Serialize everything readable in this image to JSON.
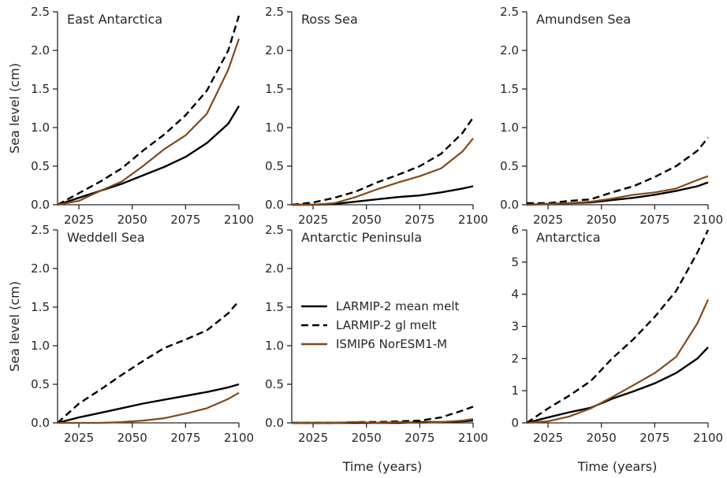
{
  "figure": {
    "ylabel": "Sea level (cm)",
    "xlabel": "Time (years)"
  },
  "legend": {
    "placement": "center of Antarctic Peninsula panel",
    "entries": [
      {
        "label": "LARMIP-2 mean melt",
        "color": "#000000",
        "style": "solid"
      },
      {
        "label": "LARMIP-2 gl melt",
        "color": "#000000",
        "style": "dashed"
      },
      {
        "label": "ISMIP6 NorESM1-M",
        "color": "#7f4a1c",
        "style": "solid"
      }
    ]
  },
  "chart_data": [
    {
      "type": "line",
      "title": "East Antarctica",
      "xlim": [
        2015,
        2100
      ],
      "ylim": [
        0,
        2.5
      ],
      "xticks": [
        2025,
        2050,
        2075,
        2100
      ],
      "yticks": [
        0.0,
        0.5,
        1.0,
        1.5,
        2.0,
        2.5
      ],
      "ylabel": "Sea level (cm)",
      "xlabel": "",
      "grid": false,
      "x": [
        2015,
        2025,
        2035,
        2045,
        2055,
        2065,
        2075,
        2085,
        2095,
        2100
      ],
      "series": [
        {
          "name": "LARMIP-2 mean melt",
          "values": [
            0.0,
            0.09,
            0.18,
            0.27,
            0.38,
            0.49,
            0.62,
            0.8,
            1.05,
            1.28
          ]
        },
        {
          "name": "LARMIP-2 gl melt",
          "values": [
            0.0,
            0.15,
            0.3,
            0.47,
            0.7,
            0.91,
            1.16,
            1.48,
            2.0,
            2.45
          ]
        },
        {
          "name": "ISMIP6 NorESM1-M",
          "values": [
            0.0,
            0.05,
            0.18,
            0.3,
            0.5,
            0.72,
            0.9,
            1.18,
            1.75,
            2.15
          ]
        }
      ]
    },
    {
      "type": "line",
      "title": "Ross Sea",
      "xlim": [
        2015,
        2100
      ],
      "ylim": [
        0,
        2.5
      ],
      "xticks": [
        2025,
        2050,
        2075,
        2100
      ],
      "yticks": [
        0.0,
        0.5,
        1.0,
        1.5,
        2.0,
        2.5
      ],
      "ylabel": "",
      "xlabel": "",
      "grid": false,
      "x": [
        2015,
        2025,
        2035,
        2045,
        2055,
        2065,
        2075,
        2085,
        2095,
        2100
      ],
      "series": [
        {
          "name": "LARMIP-2 mean melt",
          "values": [
            0.0,
            0.0,
            0.01,
            0.04,
            0.07,
            0.1,
            0.12,
            0.16,
            0.21,
            0.24
          ]
        },
        {
          "name": "LARMIP-2 gl melt",
          "values": [
            0.0,
            0.03,
            0.09,
            0.17,
            0.29,
            0.39,
            0.5,
            0.66,
            0.93,
            1.13
          ]
        },
        {
          "name": "ISMIP6 NorESM1-M",
          "values": [
            0.0,
            0.0,
            0.02,
            0.1,
            0.2,
            0.29,
            0.37,
            0.47,
            0.69,
            0.86
          ]
        }
      ]
    },
    {
      "type": "line",
      "title": "Amundsen Sea",
      "xlim": [
        2015,
        2100
      ],
      "ylim": [
        0,
        2.5
      ],
      "xticks": [
        2025,
        2050,
        2075,
        2100
      ],
      "yticks": [
        0.0,
        0.5,
        1.0,
        1.5,
        2.0,
        2.5
      ],
      "ylabel": "",
      "xlabel": "",
      "grid": false,
      "x": [
        2015,
        2025,
        2035,
        2045,
        2055,
        2065,
        2075,
        2085,
        2095,
        2100
      ],
      "series": [
        {
          "name": "LARMIP-2 mean melt",
          "values": [
            0.0,
            0.01,
            0.02,
            0.03,
            0.06,
            0.09,
            0.13,
            0.18,
            0.24,
            0.29
          ]
        },
        {
          "name": "LARMIP-2 gl melt",
          "values": [
            0.02,
            0.02,
            0.05,
            0.07,
            0.16,
            0.24,
            0.36,
            0.5,
            0.7,
            0.87
          ]
        },
        {
          "name": "ISMIP6 NorESM1-M",
          "values": [
            0.0,
            0.01,
            0.02,
            0.04,
            0.08,
            0.13,
            0.16,
            0.21,
            0.32,
            0.37
          ]
        }
      ]
    },
    {
      "type": "line",
      "title": "Weddell Sea",
      "xlim": [
        2015,
        2100
      ],
      "ylim": [
        0,
        2.5
      ],
      "xticks": [
        2025,
        2050,
        2075,
        2100
      ],
      "yticks": [
        0.0,
        0.5,
        1.0,
        1.5,
        2.0,
        2.5
      ],
      "ylabel": "Sea level (cm)",
      "xlabel": "",
      "grid": false,
      "x": [
        2015,
        2025,
        2035,
        2045,
        2055,
        2065,
        2075,
        2085,
        2095,
        2100
      ],
      "series": [
        {
          "name": "LARMIP-2 mean melt",
          "values": [
            0.0,
            0.07,
            0.13,
            0.19,
            0.25,
            0.3,
            0.35,
            0.4,
            0.46,
            0.5
          ]
        },
        {
          "name": "LARMIP-2 gl melt",
          "values": [
            0.0,
            0.25,
            0.43,
            0.62,
            0.8,
            0.97,
            1.08,
            1.2,
            1.42,
            1.58
          ]
        },
        {
          "name": "ISMIP6 NorESM1-M",
          "values": [
            0.0,
            0.0,
            0.0,
            0.01,
            0.03,
            0.06,
            0.12,
            0.19,
            0.31,
            0.39
          ]
        }
      ]
    },
    {
      "type": "line",
      "title": "Antarctic Peninsula",
      "xlim": [
        2015,
        2100
      ],
      "ylim": [
        0,
        2.5
      ],
      "xticks": [
        2025,
        2050,
        2075,
        2100
      ],
      "yticks": [
        0.0,
        0.5,
        1.0,
        1.5,
        2.0,
        2.5
      ],
      "ylabel": "",
      "xlabel": "Time (years)",
      "grid": false,
      "x": [
        2015,
        2025,
        2035,
        2045,
        2055,
        2065,
        2075,
        2085,
        2095,
        2100
      ],
      "series": [
        {
          "name": "LARMIP-2 mean melt",
          "values": [
            0.0,
            0.0,
            0.0,
            0.0,
            0.0,
            0.0,
            0.01,
            0.01,
            0.02,
            0.03
          ]
        },
        {
          "name": "LARMIP-2 gl melt",
          "values": [
            0.0,
            0.0,
            0.0,
            0.01,
            0.01,
            0.02,
            0.03,
            0.07,
            0.16,
            0.21
          ]
        },
        {
          "name": "ISMIP6 NorESM1-M",
          "values": [
            0.0,
            0.0,
            0.0,
            0.01,
            0.0,
            0.01,
            0.0,
            0.01,
            0.03,
            0.05
          ]
        }
      ]
    },
    {
      "type": "line",
      "title": "Antarctica",
      "xlim": [
        2015,
        2100
      ],
      "ylim": [
        0,
        6
      ],
      "xticks": [
        2025,
        2050,
        2075,
        2100
      ],
      "yticks": [
        0,
        1,
        2,
        3,
        4,
        5,
        6
      ],
      "ylabel": "",
      "xlabel": "Time (years)",
      "grid": false,
      "x": [
        2015,
        2025,
        2035,
        2045,
        2055,
        2065,
        2075,
        2085,
        2095,
        2100
      ],
      "series": [
        {
          "name": "LARMIP-2 mean melt",
          "values": [
            0.0,
            0.17,
            0.33,
            0.47,
            0.75,
            0.98,
            1.23,
            1.55,
            2.0,
            2.35
          ]
        },
        {
          "name": "LARMIP-2 gl melt",
          "values": [
            0.0,
            0.45,
            0.85,
            1.3,
            2.0,
            2.6,
            3.3,
            4.1,
            5.3,
            6.0
          ]
        },
        {
          "name": "ISMIP6 NorESM1-M",
          "values": [
            0.0,
            0.05,
            0.2,
            0.45,
            0.8,
            1.17,
            1.55,
            2.05,
            3.1,
            3.83
          ]
        }
      ]
    }
  ]
}
